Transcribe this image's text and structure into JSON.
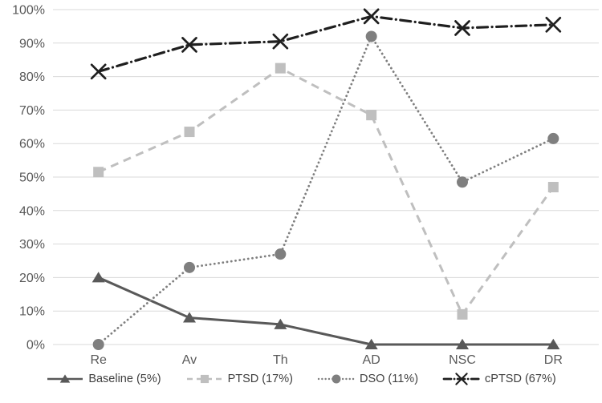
{
  "chart_data": {
    "type": "line",
    "categories": [
      "Re",
      "Av",
      "Th",
      "AD",
      "NSC",
      "DR"
    ],
    "series": [
      {
        "name": "Baseline (5%)",
        "values": [
          20,
          8,
          6,
          0,
          0,
          0
        ],
        "color": "#595959",
        "marker": "triangle",
        "dash": "solid",
        "width": 3
      },
      {
        "name": "PTSD (17%)",
        "values": [
          51.5,
          63.5,
          82.5,
          68.5,
          9,
          47
        ],
        "color": "#bfbfbf",
        "marker": "square",
        "dash": "dashed",
        "width": 3
      },
      {
        "name": "DSO (11%)",
        "values": [
          0,
          23,
          27,
          92,
          48.5,
          61.5
        ],
        "color": "#7f7f7f",
        "marker": "circle",
        "dash": "dotted",
        "width": 2.8
      },
      {
        "name": "cPTSD (67%)",
        "values": [
          81.5,
          89.5,
          90.5,
          98,
          94.5,
          95.5
        ],
        "color": "#1f1f1f",
        "marker": "x",
        "dash": "dashdot",
        "width": 3.2
      }
    ],
    "title": "",
    "xlabel": "",
    "ylabel": "",
    "ylim": [
      0,
      100
    ],
    "y_ticks": [
      "0%",
      "10%",
      "20%",
      "30%",
      "40%",
      "50%",
      "60%",
      "70%",
      "80%",
      "90%",
      "100%"
    ],
    "grid": true,
    "legend_position": "bottom",
    "colors": {
      "gridline": "#d9d9d9",
      "axis_text": "#595959",
      "legend_text": "#404040",
      "background": "#ffffff"
    }
  }
}
